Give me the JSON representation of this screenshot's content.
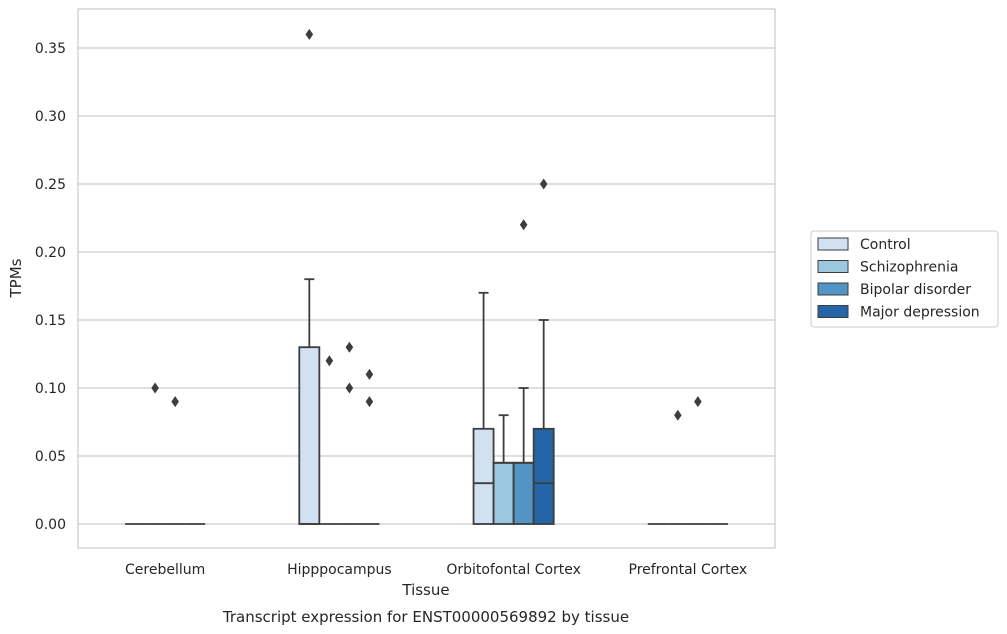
{
  "chart_data": {
    "type": "box",
    "title": "Transcript expression for ENST00000569892 by tissue",
    "xlabel": "Tissue",
    "ylabel": "TPMs",
    "ylim": [
      -0.018,
      0.38
    ],
    "yticks": [
      "0.00",
      "0.05",
      "0.10",
      "0.15",
      "0.20",
      "0.25",
      "0.30",
      "0.35"
    ],
    "ytick_values": [
      0,
      0.05,
      0.1,
      0.15,
      0.2,
      0.25,
      0.3,
      0.35
    ],
    "grid": true,
    "legend_position": "right",
    "categories": [
      "Cerebellum",
      "Hipppocampus",
      "Orbitofontal Cortex",
      "Prefrontal Cortex"
    ],
    "series": [
      {
        "name": "Control",
        "color": "#d2e1f1",
        "boxes": [
          {
            "q1": 0,
            "median": 0,
            "q3": 0,
            "whisker_low": 0,
            "whisker_high": 0,
            "outliers": []
          },
          {
            "q1": 0,
            "median": 0,
            "q3": 0.13,
            "whisker_low": 0,
            "whisker_high": 0.18,
            "outliers": [
              0.36
            ]
          },
          {
            "q1": 0,
            "median": 0.03,
            "q3": 0.07,
            "whisker_low": 0,
            "whisker_high": 0.17,
            "outliers": []
          },
          {
            "q1": 0,
            "median": 0,
            "q3": 0,
            "whisker_low": 0,
            "whisker_high": 0,
            "outliers": []
          }
        ]
      },
      {
        "name": "Schizophrenia",
        "color": "#9bc7df",
        "boxes": [
          {
            "q1": 0,
            "median": 0,
            "q3": 0,
            "whisker_low": 0,
            "whisker_high": 0,
            "outliers": [
              0.1
            ]
          },
          {
            "q1": 0,
            "median": 0,
            "q3": 0,
            "whisker_low": 0,
            "whisker_high": 0,
            "outliers": [
              0.12
            ]
          },
          {
            "q1": 0,
            "median": 0.045,
            "q3": 0.045,
            "whisker_low": 0,
            "whisker_high": 0.08,
            "outliers": []
          },
          {
            "q1": 0,
            "median": 0,
            "q3": 0,
            "whisker_low": 0,
            "whisker_high": 0,
            "outliers": [
              0.08
            ]
          }
        ]
      },
      {
        "name": "Bipolar disorder",
        "color": "#5294c6",
        "boxes": [
          {
            "q1": 0,
            "median": 0,
            "q3": 0,
            "whisker_low": 0,
            "whisker_high": 0,
            "outliers": [
              0.09
            ]
          },
          {
            "q1": 0,
            "median": 0,
            "q3": 0,
            "whisker_low": 0,
            "whisker_high": 0,
            "outliers": [
              0.13,
              0.1
            ]
          },
          {
            "q1": 0,
            "median": 0.045,
            "q3": 0.045,
            "whisker_low": 0,
            "whisker_high": 0.1,
            "outliers": [
              0.22
            ]
          },
          {
            "q1": 0,
            "median": 0,
            "q3": 0,
            "whisker_low": 0,
            "whisker_high": 0,
            "outliers": [
              0.09
            ]
          }
        ]
      },
      {
        "name": "Major depression",
        "color": "#2465a8",
        "boxes": [
          {
            "q1": 0,
            "median": 0,
            "q3": 0,
            "whisker_low": 0,
            "whisker_high": 0,
            "outliers": []
          },
          {
            "q1": 0,
            "median": 0,
            "q3": 0,
            "whisker_low": 0,
            "whisker_high": 0,
            "outliers": [
              0.11,
              0.09
            ]
          },
          {
            "q1": 0,
            "median": 0.03,
            "q3": 0.07,
            "whisker_low": 0,
            "whisker_high": 0.15,
            "outliers": [
              0.25
            ]
          },
          {
            "q1": 0,
            "median": 0,
            "q3": 0,
            "whisker_low": 0,
            "whisker_high": 0,
            "outliers": []
          }
        ]
      }
    ]
  }
}
